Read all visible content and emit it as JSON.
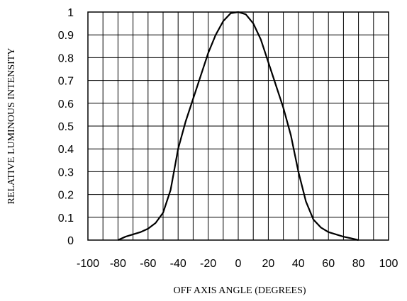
{
  "chart_data": {
    "type": "line",
    "title": "",
    "xlabel": "OFF AXIS ANGLE (DEGREES)",
    "ylabel": "RELATIVE LUMINOUS INTENSITY",
    "xlim": [
      -100,
      100
    ],
    "ylim": [
      0,
      1
    ],
    "x_ticks": [
      -100,
      -80,
      -60,
      -40,
      -20,
      0,
      20,
      40,
      60,
      80,
      100
    ],
    "y_ticks": [
      0,
      0.1,
      0.2,
      0.3,
      0.4,
      0.5,
      0.6,
      0.7,
      0.8,
      0.9,
      1
    ],
    "grid": true,
    "x_grid_step": 10,
    "series": [
      {
        "x": [
          -80,
          -75,
          -70,
          -65,
          -60,
          -55,
          -50,
          -45,
          -40,
          -35,
          -30,
          -25,
          -20,
          -15,
          -10,
          -5,
          0,
          5,
          10,
          15,
          20,
          25,
          30,
          35,
          40,
          45,
          50,
          55,
          60,
          65,
          70,
          75,
          80
        ],
        "values": [
          0,
          0.015,
          0.025,
          0.035,
          0.05,
          0.075,
          0.12,
          0.22,
          0.4,
          0.52,
          0.62,
          0.72,
          0.82,
          0.9,
          0.96,
          0.995,
          1,
          0.99,
          0.95,
          0.88,
          0.78,
          0.68,
          0.58,
          0.46,
          0.3,
          0.17,
          0.09,
          0.055,
          0.035,
          0.025,
          0.015,
          0.008,
          0
        ]
      }
    ]
  }
}
